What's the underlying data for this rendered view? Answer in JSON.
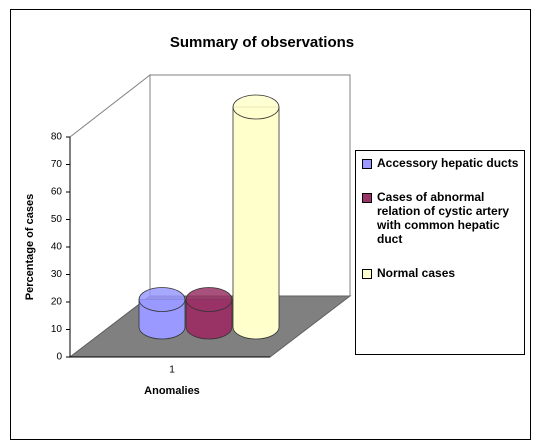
{
  "chart_data": {
    "type": "bar3d",
    "title": "Summary of observations",
    "x_label": "Anomalies",
    "y_label": "Percentage of cases",
    "categories": [
      "1"
    ],
    "series": [
      {
        "name": "Accessory hepatic ducts",
        "color": "#9999ff",
        "values": [
          10
        ]
      },
      {
        "name": "Cases of abnormal relation of cystic artery with common hepatic duct",
        "color": "#993366",
        "values": [
          10
        ]
      },
      {
        "name": "Normal cases",
        "color": "#ffffcc",
        "values": [
          80
        ]
      }
    ],
    "ylim": [
      0,
      80
    ],
    "yticks": [
      0,
      10,
      20,
      30,
      40,
      50,
      60,
      70,
      80
    ],
    "legend": "right"
  }
}
